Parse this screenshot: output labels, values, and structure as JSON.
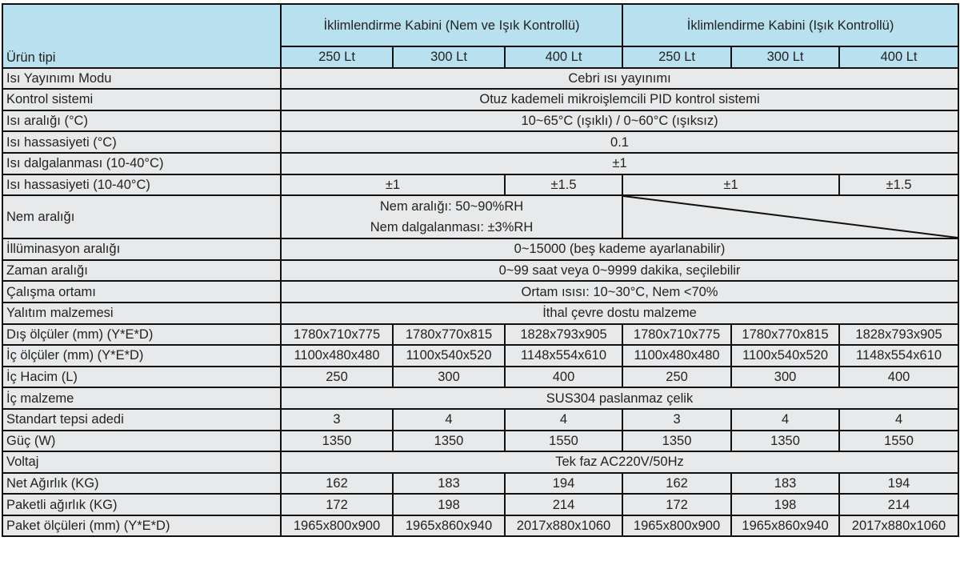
{
  "colors": {
    "header_bg": "#b9e0ef",
    "body_bg": "#e8e9ea",
    "border": "#111111"
  },
  "header": {
    "label": "Ürün tipi",
    "groups": [
      "İklimlendirme Kabini (Nem ve Işık Kontrollü)",
      "İklimlendirme Kabini (Işık Kontrollü)"
    ],
    "sizes": [
      "250 Lt",
      "300 Lt",
      "400 Lt",
      "250 Lt",
      "300 Lt",
      "400 Lt"
    ]
  },
  "rows": [
    {
      "label": "Isı Yayınımı Modu",
      "cells": [
        {
          "text": "Cebri ısı yayınımı",
          "span": 6
        }
      ]
    },
    {
      "label": "Kontrol sistemi",
      "cells": [
        {
          "text": "Otuz kademeli mikroişlemcili PID kontrol sistemi",
          "span": 6
        }
      ]
    },
    {
      "label": "Isı aralığı (°C)",
      "cells": [
        {
          "text": "10~65°C (ışıklı) / 0~60°C (ışıksız)",
          "span": 6
        }
      ]
    },
    {
      "label": "Isı hassasiyeti (°C)",
      "cells": [
        {
          "text": "0.1",
          "span": 6
        }
      ]
    },
    {
      "label": "Isı dalgalanması (10-40°C)",
      "cells": [
        {
          "text": "±1",
          "span": 6
        }
      ]
    },
    {
      "label": "Isı hassasiyeti (10-40°C)",
      "cells": [
        {
          "text": "±1",
          "span": 2
        },
        {
          "text": "±1.5",
          "span": 1
        },
        {
          "text": "±1",
          "span": 2
        },
        {
          "text": "±1.5",
          "span": 1
        }
      ]
    },
    {
      "label": "Nem aralığı",
      "multi": true,
      "cells": [
        {
          "lines": [
            "Nem aralığı: 50~90%RH",
            "Nem dalgalanması: ±3%RH"
          ],
          "span": 3
        },
        {
          "diagonal": true,
          "span": 3
        }
      ]
    },
    {
      "label": "İllüminasyon aralığı",
      "cells": [
        {
          "text": "0~15000 (beş kademe ayarlanabilir)",
          "span": 6
        }
      ]
    },
    {
      "label": "Zaman aralığı",
      "cells": [
        {
          "text": "0~99 saat veya 0~9999 dakika, seçilebilir",
          "span": 6
        }
      ]
    },
    {
      "label": "Çalışma ortamı",
      "cells": [
        {
          "text": "Ortam ısısı: 10~30°C, Nem <70%",
          "span": 6
        }
      ]
    },
    {
      "label": "Yalıtım malzemesi",
      "cells": [
        {
          "text": "İthal çevre dostu malzeme",
          "span": 6
        }
      ]
    },
    {
      "label": "Dış ölçüler (mm) (Y*E*D)",
      "cells": [
        {
          "text": "1780x710x775"
        },
        {
          "text": "1780x770x815"
        },
        {
          "text": "1828x793x905"
        },
        {
          "text": "1780x710x775"
        },
        {
          "text": "1780x770x815"
        },
        {
          "text": "1828x793x905"
        }
      ]
    },
    {
      "label": "İç ölçüler (mm) (Y*E*D)",
      "cells": [
        {
          "text": "1100x480x480"
        },
        {
          "text": "1100x540x520"
        },
        {
          "text": "1148x554x610"
        },
        {
          "text": "1100x480x480"
        },
        {
          "text": "1100x540x520"
        },
        {
          "text": "1148x554x610"
        }
      ]
    },
    {
      "label": "İç Hacim (L)",
      "cells": [
        {
          "text": "250"
        },
        {
          "text": "300"
        },
        {
          "text": "400"
        },
        {
          "text": "250"
        },
        {
          "text": "300"
        },
        {
          "text": "400"
        }
      ]
    },
    {
      "label": "İç malzeme",
      "cells": [
        {
          "text": "SUS304 paslanmaz çelik",
          "span": 6
        }
      ]
    },
    {
      "label": "Standart tepsi adedi",
      "cells": [
        {
          "text": "3"
        },
        {
          "text": "4"
        },
        {
          "text": "4"
        },
        {
          "text": "3"
        },
        {
          "text": "4"
        },
        {
          "text": "4"
        }
      ]
    },
    {
      "label": "Güç (W)",
      "cells": [
        {
          "text": "1350"
        },
        {
          "text": "1350"
        },
        {
          "text": "1550"
        },
        {
          "text": "1350"
        },
        {
          "text": "1350"
        },
        {
          "text": "1550"
        }
      ]
    },
    {
      "label": "Voltaj",
      "cells": [
        {
          "text": "Tek faz AC220V/50Hz",
          "span": 6
        }
      ]
    },
    {
      "label": "Net Ağırlık (KG)",
      "cells": [
        {
          "text": "162"
        },
        {
          "text": "183"
        },
        {
          "text": "194"
        },
        {
          "text": "162"
        },
        {
          "text": "183"
        },
        {
          "text": "194"
        }
      ]
    },
    {
      "label": "Paketli ağırlık (KG)",
      "cells": [
        {
          "text": "172"
        },
        {
          "text": "198"
        },
        {
          "text": "214"
        },
        {
          "text": "172"
        },
        {
          "text": "198"
        },
        {
          "text": "214"
        }
      ]
    },
    {
      "label": "Paket ölçüleri (mm) (Y*E*D)",
      "cells": [
        {
          "text": "1965x800x900"
        },
        {
          "text": "1965x860x940"
        },
        {
          "text": "2017x880x1060"
        },
        {
          "text": "1965x800x900"
        },
        {
          "text": "1965x860x940"
        },
        {
          "text": "2017x880x1060"
        }
      ]
    }
  ]
}
